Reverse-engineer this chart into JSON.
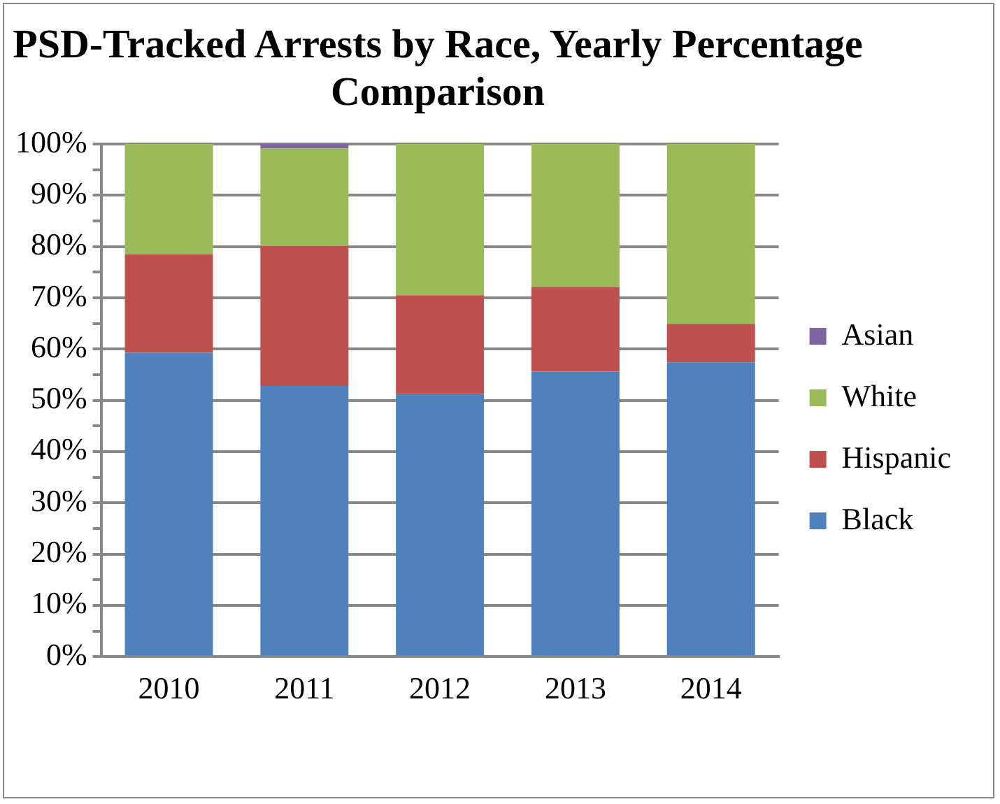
{
  "chart_data": {
    "type": "bar",
    "title": "PSD-Tracked Arrests by Race, Yearly Percentage Comparison",
    "categories": [
      "2010",
      "2011",
      "2012",
      "2013",
      "2014"
    ],
    "stacked": true,
    "series": [
      {
        "name": "Black",
        "color": "#4f81bd",
        "values": [
          59.3,
          52.8,
          51.2,
          55.6,
          57.4
        ]
      },
      {
        "name": "Hispanic",
        "color": "#c0504d",
        "values": [
          19.2,
          27.3,
          19.3,
          16.5,
          7.5
        ]
      },
      {
        "name": "White",
        "color": "#9bbb59",
        "values": [
          21.5,
          19.0,
          29.5,
          27.9,
          35.1
        ]
      },
      {
        "name": "Asian",
        "color": "#8064a2",
        "values": [
          0,
          0.9,
          0,
          0,
          0
        ]
      }
    ],
    "ylim": [
      0,
      100
    ],
    "yticks": [
      {
        "value": 0,
        "label": "0%"
      },
      {
        "value": 5,
        "label": null
      },
      {
        "value": 10,
        "label": "10%"
      },
      {
        "value": 15,
        "label": null
      },
      {
        "value": 20,
        "label": "20%"
      },
      {
        "value": 25,
        "label": null
      },
      {
        "value": 30,
        "label": "30%"
      },
      {
        "value": 35,
        "label": null
      },
      {
        "value": 40,
        "label": "40%"
      },
      {
        "value": 45,
        "label": null
      },
      {
        "value": 50,
        "label": "50%"
      },
      {
        "value": 55,
        "label": null
      },
      {
        "value": 60,
        "label": "60%"
      },
      {
        "value": 65,
        "label": null
      },
      {
        "value": 70,
        "label": "70%"
      },
      {
        "value": 75,
        "label": null
      },
      {
        "value": 80,
        "label": "80%"
      },
      {
        "value": 85,
        "label": null
      },
      {
        "value": 90,
        "label": "90%"
      },
      {
        "value": 95,
        "label": null
      },
      {
        "value": 100,
        "label": "100%"
      }
    ],
    "grid": "y",
    "legend": "right"
  }
}
